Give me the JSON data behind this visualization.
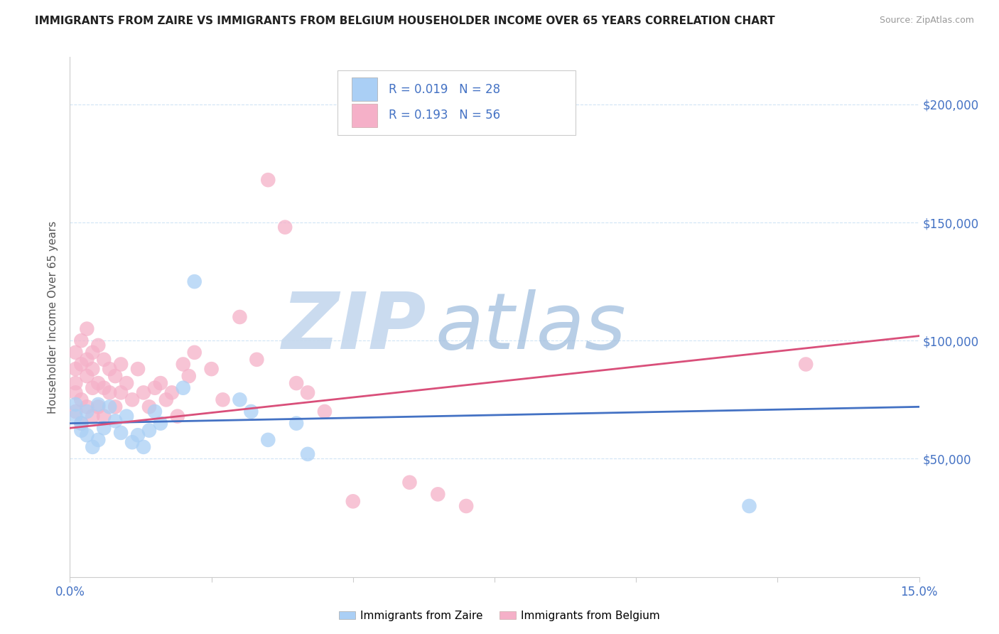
{
  "title": "IMMIGRANTS FROM ZAIRE VS IMMIGRANTS FROM BELGIUM HOUSEHOLDER INCOME OVER 65 YEARS CORRELATION CHART",
  "source": "Source: ZipAtlas.com",
  "ylabel": "Householder Income Over 65 years",
  "xlim": [
    0.0,
    0.15
  ],
  "ylim": [
    0,
    220000
  ],
  "yticks": [
    50000,
    100000,
    150000,
    200000
  ],
  "ytick_labels": [
    "$50,000",
    "$100,000",
    "$150,000",
    "$200,000"
  ],
  "xtick_labels": [
    "0.0%",
    "15.0%"
  ],
  "legend_labels": [
    "Immigrants from Zaire",
    "Immigrants from Belgium"
  ],
  "legend_r_zaire": "R = 0.019",
  "legend_n_zaire": "N = 28",
  "legend_r_belgium": "R = 0.193",
  "legend_n_belgium": "N = 56",
  "color_zaire": "#aacff5",
  "color_belgium": "#f5b0c8",
  "line_color_zaire": "#4472c4",
  "line_color_belgium": "#d94f7a",
  "watermark_zip": "ZIP",
  "watermark_atlas": "atlas",
  "watermark_color": "#cde0f5",
  "zaire_x": [
    0.001,
    0.001,
    0.002,
    0.002,
    0.003,
    0.003,
    0.004,
    0.005,
    0.005,
    0.006,
    0.007,
    0.008,
    0.009,
    0.01,
    0.011,
    0.012,
    0.013,
    0.014,
    0.015,
    0.016,
    0.02,
    0.022,
    0.03,
    0.032,
    0.035,
    0.04,
    0.042,
    0.12
  ],
  "zaire_y": [
    73000,
    68000,
    65000,
    62000,
    70000,
    60000,
    55000,
    73000,
    58000,
    63000,
    72000,
    66000,
    61000,
    68000,
    57000,
    60000,
    55000,
    62000,
    70000,
    65000,
    80000,
    125000,
    75000,
    70000,
    58000,
    65000,
    52000,
    30000
  ],
  "belgium_x": [
    0.001,
    0.001,
    0.001,
    0.001,
    0.001,
    0.002,
    0.002,
    0.002,
    0.002,
    0.003,
    0.003,
    0.003,
    0.003,
    0.004,
    0.004,
    0.004,
    0.004,
    0.005,
    0.005,
    0.005,
    0.006,
    0.006,
    0.006,
    0.007,
    0.007,
    0.008,
    0.008,
    0.009,
    0.009,
    0.01,
    0.011,
    0.012,
    0.013,
    0.014,
    0.015,
    0.016,
    0.017,
    0.018,
    0.019,
    0.02,
    0.021,
    0.022,
    0.025,
    0.027,
    0.03,
    0.033,
    0.04,
    0.042,
    0.045,
    0.05,
    0.06,
    0.065,
    0.07,
    0.035,
    0.038,
    0.13
  ],
  "belgium_y": [
    88000,
    78000,
    95000,
    82000,
    70000,
    100000,
    90000,
    75000,
    65000,
    105000,
    92000,
    85000,
    72000,
    95000,
    88000,
    80000,
    68000,
    98000,
    82000,
    72000,
    92000,
    80000,
    68000,
    88000,
    78000,
    85000,
    72000,
    90000,
    78000,
    82000,
    75000,
    88000,
    78000,
    72000,
    80000,
    82000,
    75000,
    78000,
    68000,
    90000,
    85000,
    95000,
    88000,
    75000,
    110000,
    92000,
    82000,
    78000,
    70000,
    32000,
    40000,
    35000,
    30000,
    168000,
    148000,
    90000
  ],
  "trend_zaire_x0": 0.0,
  "trend_zaire_x1": 0.15,
  "trend_zaire_y0": 65000,
  "trend_zaire_y1": 72000,
  "trend_belgium_x0": 0.0,
  "trend_belgium_x1": 0.15,
  "trend_belgium_y0": 63000,
  "trend_belgium_y1": 102000
}
